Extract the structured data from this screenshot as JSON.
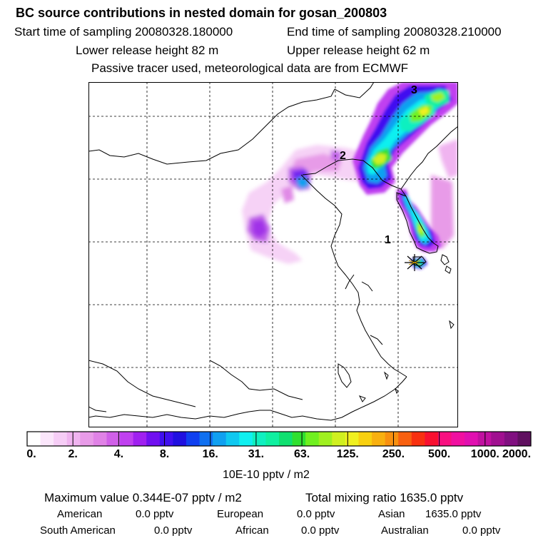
{
  "header": {
    "title": "BC  source contributions in nested domain for gosan_200803",
    "start_label": "Start time of sampling 20080328.180000",
    "end_label": "End time of sampling 20080328.210000",
    "lower_label": "Lower release height   82 m",
    "upper_label": "Upper release height   62 m",
    "tracer_note": "Passive tracer used, meteorological data are from ECMWF"
  },
  "map": {
    "trajectory_labels": [
      "1",
      "2",
      "3"
    ],
    "receptor_marker": "asterisk-receptor-icon"
  },
  "colorbar": {
    "tick_labels": [
      "0.",
      "2.",
      "4.",
      "8.",
      "16.",
      "31.",
      "63.",
      "125.",
      "250.",
      "500.",
      "1000.",
      "2000."
    ],
    "unit_label": "10E-10 pptv / m2",
    "colors": [
      "#ffffff",
      "#fbe6fb",
      "#f6cdf6",
      "#f0b4f0",
      "#e89be8",
      "#e082e6",
      "#d060e8",
      "#c040f0",
      "#a020f0",
      "#7010f0",
      "#4010f0",
      "#2010e0",
      "#1040f0",
      "#1070f0",
      "#10a0f0",
      "#10c8f0",
      "#10f0f0",
      "#10f0c0",
      "#10f0a0",
      "#10e070",
      "#30e030",
      "#70f020",
      "#a0f020",
      "#d0f020",
      "#f0f020",
      "#f8d010",
      "#f8b010",
      "#f89010",
      "#f86010",
      "#f83010",
      "#f81030",
      "#f81080",
      "#f010a0",
      "#e010b0",
      "#c010a0",
      "#a01090",
      "#801080",
      "#601060"
    ]
  },
  "footer": {
    "max_value": "Maximum value  0.344E-07 pptv / m2",
    "total_mixing": "Total mixing ratio     1635.0 pptv",
    "american": "American",
    "american_value": "0.0 pptv",
    "european": "European",
    "european_value": "0.0 pptv",
    "asian": "Asian",
    "asian_value": "1635.0 pptv",
    "south_american": "South American",
    "south_american_value": "0.0 pptv",
    "african": "African",
    "african_value": "0.0 pptv",
    "australian": "Australian",
    "australian_value": "0.0 pptv"
  }
}
